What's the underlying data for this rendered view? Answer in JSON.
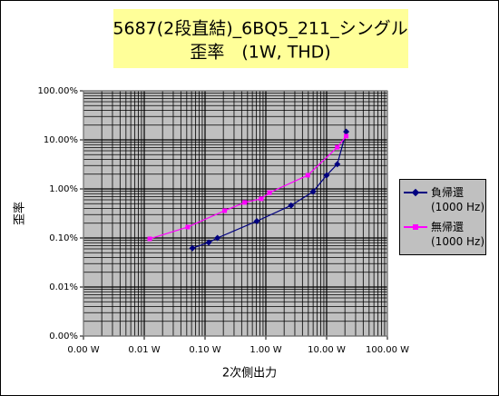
{
  "chart_data": {
    "type": "line",
    "title": "5687(2段直結)_6BQ5_211_シングル",
    "subtitle": "歪率　(1W, THD)",
    "x_label": "2次側出力",
    "y_label": "歪率",
    "x_log": true,
    "y_log": true,
    "grid": true,
    "minor_grid": true,
    "legend_position": "right",
    "xlim": [
      0.001,
      100
    ],
    "xticks": [
      {
        "value": 0.001,
        "label": "0.00 W"
      },
      {
        "value": 0.01,
        "label": "0.01 W"
      },
      {
        "value": 0.1,
        "label": "0.10 W"
      },
      {
        "value": 1,
        "label": "1.00 W"
      },
      {
        "value": 10,
        "label": "10.00 W"
      },
      {
        "value": 100,
        "label": "100.00 W"
      }
    ],
    "ylim": [
      0.001,
      100
    ],
    "yticks": [
      {
        "value": 0.001,
        "label": "0.00%"
      },
      {
        "value": 0.01,
        "label": "0.01%"
      },
      {
        "value": 0.1,
        "label": "0.10%"
      },
      {
        "value": 1,
        "label": "1.00%"
      },
      {
        "value": 10,
        "label": "10.00%"
      },
      {
        "value": 100,
        "label": "100.00%"
      }
    ],
    "series": [
      {
        "name": "負帰還 (1000 Hz)",
        "color": "#000080",
        "marker": "diamond",
        "x": [
          0.062,
          0.115,
          0.16,
          0.71,
          2.6,
          6.0,
          10,
          15,
          21
        ],
        "values": [
          0.062,
          0.081,
          0.1,
          0.22,
          0.46,
          0.88,
          1.9,
          3.2,
          14.7
        ]
      },
      {
        "name": "無帰還 (1000 Hz)",
        "color": "#ff00ff",
        "marker": "square",
        "x": [
          0.0123,
          0.052,
          0.21,
          0.45,
          0.84,
          1.15,
          4.9,
          15,
          21
        ],
        "values": [
          0.096,
          0.167,
          0.36,
          0.53,
          0.63,
          0.84,
          1.9,
          7.1,
          11.9
        ]
      }
    ]
  }
}
